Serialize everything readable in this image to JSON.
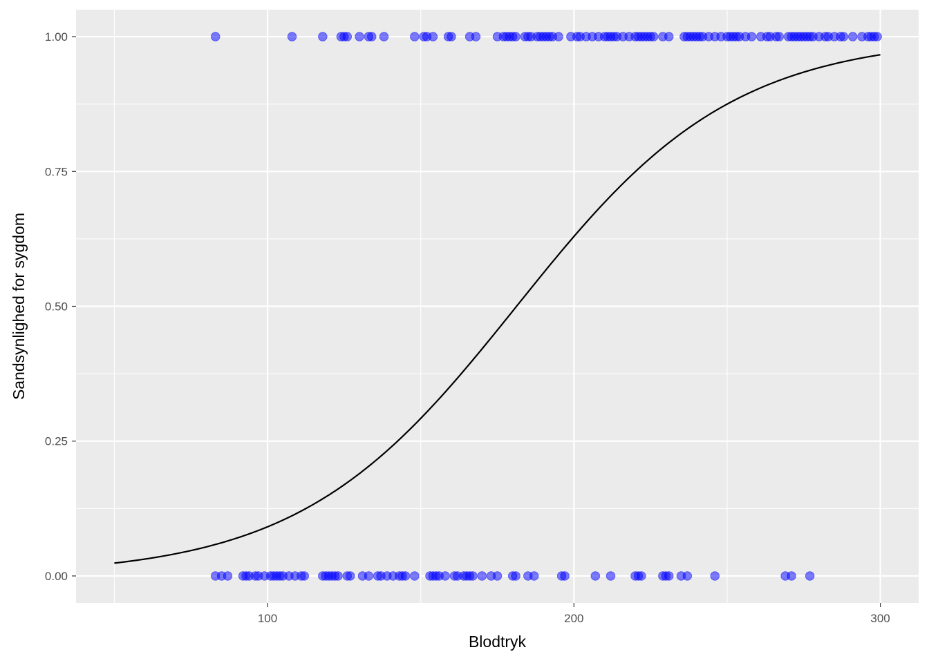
{
  "chart_data": {
    "type": "scatter",
    "title": "",
    "xlabel": "Blodtryk",
    "ylabel": "Sandsynlighed for sygdom",
    "xlim": [
      37.5,
      312.5
    ],
    "ylim": [
      -0.05,
      1.05
    ],
    "x_ticks": [
      100,
      200,
      300
    ],
    "x_tick_labels": [
      "100",
      "200",
      "300"
    ],
    "y_ticks": [
      0,
      0.25,
      0.5,
      0.75,
      1
    ],
    "y_tick_labels": [
      "0.00",
      "0.25",
      "0.50",
      "0.75",
      "1.00"
    ],
    "grid": true,
    "background": "#ebebeb",
    "point_color": "#0000ff",
    "point_alpha": 0.5,
    "line_color": "#000000",
    "series": [
      {
        "kind": "points",
        "y": 1,
        "x": [
          83,
          108,
          118,
          124,
          125,
          126,
          130,
          133,
          134,
          138,
          148,
          151,
          152,
          154,
          159,
          160,
          166,
          168,
          175,
          177,
          178,
          179,
          180,
          181,
          184,
          185,
          186,
          188,
          189,
          190,
          191,
          192,
          193,
          195,
          199,
          201,
          202,
          204,
          206,
          208,
          210,
          211,
          212,
          213,
          214,
          216,
          218,
          220,
          221,
          222,
          223,
          224,
          225,
          226,
          229,
          231,
          236,
          237,
          238,
          239,
          240,
          241,
          242,
          244,
          246,
          248,
          250,
          251,
          252,
          253,
          254,
          256,
          258,
          261,
          263,
          264,
          266,
          267,
          270,
          271,
          272,
          273,
          274,
          275,
          276,
          277,
          278,
          280,
          282,
          283,
          285,
          287,
          288,
          291,
          294,
          296,
          297,
          298,
          299
        ]
      },
      {
        "kind": "points",
        "y": 0,
        "x": [
          83,
          85,
          87,
          92,
          93,
          94,
          96,
          97,
          99,
          101,
          102,
          103,
          104,
          105,
          107,
          109,
          111,
          112,
          118,
          119,
          120,
          121,
          122,
          123,
          126,
          127,
          131,
          133,
          136,
          137,
          139,
          141,
          143,
          144,
          145,
          148,
          153,
          154,
          155,
          156,
          158,
          161,
          162,
          164,
          165,
          166,
          167,
          170,
          173,
          175,
          180,
          181,
          185,
          187,
          196,
          197,
          207,
          212,
          220,
          221,
          222,
          229,
          230,
          231,
          235,
          237,
          246,
          269,
          271,
          277
        ]
      },
      {
        "kind": "curve",
        "model": "logistic",
        "intercept": -5.13,
        "slope": 0.0283,
        "x_range": [
          50,
          300
        ]
      }
    ]
  }
}
